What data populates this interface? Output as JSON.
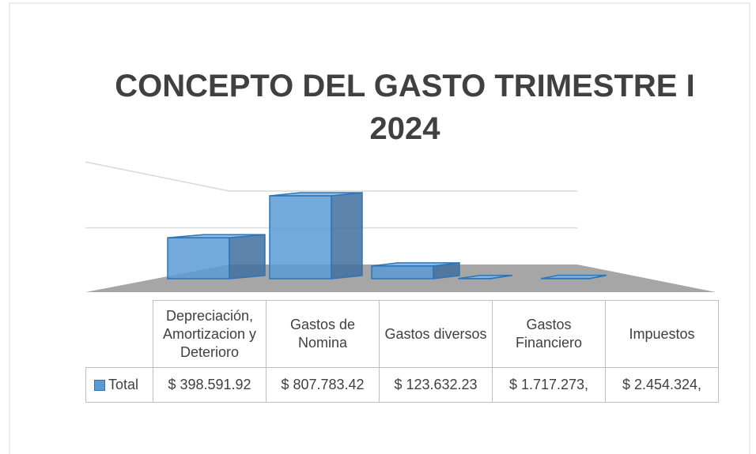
{
  "chart_data": {
    "type": "bar3d",
    "title": "CONCEPTO DEL GASTO TRIMESTRE I 2024",
    "categories": [
      "Depreciación, Amortizacion y Deterioro",
      "Gastos de Nomina",
      "Gastos diversos",
      "Gastos Financiero",
      "Impuestos"
    ],
    "series": [
      {
        "name": "Total",
        "color": "#5b9bd5",
        "values": [
          398591.92,
          807783.42,
          123632.23,
          1717.273,
          2454.324
        ],
        "value_labels": [
          "$ 398.591.92",
          "$ 807.783.42",
          "$ 123.632.23",
          "$ 1.717.273,",
          "$ 2.454.324,"
        ]
      }
    ],
    "ylim": [
      0,
      1000000
    ],
    "yticks": [
      0,
      500000,
      1000000
    ],
    "grid": true
  }
}
